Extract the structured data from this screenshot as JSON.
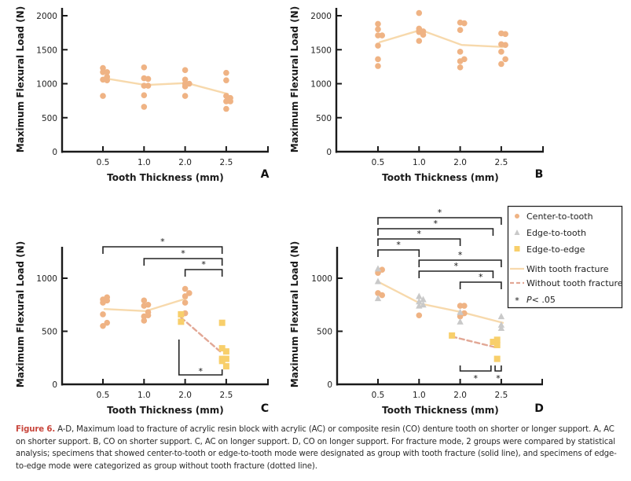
{
  "figure": {
    "caption_lead": "Figure 6.",
    "caption_text": " A-D, Maximum load to fracture of acrylic resin block with acrylic (AC) or composite resin (CO) denture tooth on shorter or longer support. A, AC on shorter support. B, CO on shorter support. C, AC on longer support. D, CO on longer support. For fracture mode, 2 groups were compared by statistical analysis; specimens that showed center-to-tooth or edge-to-tooth mode were designated as group with tooth fracture (solid line), and specimens of edge-to-edge mode were categorized as group without tooth fracture (dotted line).",
    "colors": {
      "center_to_tooth": "#efb384",
      "edge_to_tooth": "#c9c9c9",
      "edge_to_edge": "#f8cf6b",
      "with_fracture_line": "#f7d9ac",
      "without_fracture_line": "#e2a795",
      "axis": "#1a1a1a",
      "caption_lead": "#c8463c"
    },
    "legend": {
      "items": [
        {
          "label": "Center-to-tooth",
          "marker": "circle"
        },
        {
          "label": "Edge-to-tooth",
          "marker": "triangle"
        },
        {
          "label": "Edge-to-edge",
          "marker": "square"
        },
        {
          "label": "With tooth fracture",
          "marker": "solid-line"
        },
        {
          "label": "Without tooth fracture",
          "marker": "dashed-line"
        },
        {
          "label": "P< .05",
          "marker": "star"
        }
      ],
      "star_symbol": "*",
      "p_italic": "P",
      "p_rest": "< .05"
    }
  },
  "chart_data": [
    {
      "panel": "A",
      "type": "scatter",
      "title": "",
      "xlabel": "Tooth Thickness (mm)",
      "ylabel": "Maximum Flexural Load (N)",
      "categories": [
        "0.5",
        "1.0",
        "2.0",
        "2.5"
      ],
      "ylim": [
        0,
        2000
      ],
      "yticks": [
        0,
        500,
        1000,
        1500,
        2000
      ],
      "grid": false,
      "series": [
        {
          "name": "Center-to-tooth",
          "marker": "circle",
          "points": [
            [
              0,
              1230
            ],
            [
              0,
              1170
            ],
            [
              0,
              1060
            ],
            [
              0,
              820
            ],
            [
              0.1,
              1170
            ],
            [
              0.1,
              1100
            ],
            [
              0.1,
              1050
            ],
            [
              1,
              1240
            ],
            [
              1,
              1080
            ],
            [
              1,
              970
            ],
            [
              1,
              830
            ],
            [
              1,
              660
            ],
            [
              1.1,
              1070
            ],
            [
              1.1,
              970
            ],
            [
              2,
              1200
            ],
            [
              2,
              1060
            ],
            [
              2,
              1000
            ],
            [
              2,
              960
            ],
            [
              2,
              820
            ],
            [
              2.1,
              1000
            ],
            [
              3,
              1160
            ],
            [
              3,
              1050
            ],
            [
              3,
              820
            ],
            [
              3,
              740
            ],
            [
              3,
              630
            ],
            [
              3.1,
              790
            ],
            [
              3.1,
              740
            ]
          ]
        },
        {
          "name": "With tooth fracture",
          "style": "solid-line",
          "values": [
            1080,
            980,
            1010,
            850
          ]
        }
      ],
      "annotations": []
    },
    {
      "panel": "B",
      "type": "scatter",
      "title": "",
      "xlabel": "Tooth Thickness (mm)",
      "ylabel": "Maximum Flexural Load (N)",
      "categories": [
        "0.5",
        "1.0",
        "2.0",
        "2.5"
      ],
      "ylim": [
        0,
        2000
      ],
      "yticks": [
        0,
        500,
        1000,
        1500,
        2000
      ],
      "grid": false,
      "series": [
        {
          "name": "Center-to-tooth",
          "marker": "circle",
          "points": [
            [
              0,
              1880
            ],
            [
              0,
              1800
            ],
            [
              0,
              1710
            ],
            [
              0,
              1560
            ],
            [
              0,
              1360
            ],
            [
              0,
              1260
            ],
            [
              0.1,
              1710
            ],
            [
              1,
              2040
            ],
            [
              1,
              1810
            ],
            [
              1,
              1780
            ],
            [
              1,
              1760
            ],
            [
              1,
              1630
            ],
            [
              1.1,
              1770
            ],
            [
              1.1,
              1720
            ],
            [
              2,
              1900
            ],
            [
              2,
              1790
            ],
            [
              2,
              1470
            ],
            [
              2,
              1330
            ],
            [
              2,
              1240
            ],
            [
              2.1,
              1890
            ],
            [
              2.1,
              1360
            ],
            [
              3,
              1740
            ],
            [
              3,
              1580
            ],
            [
              3,
              1470
            ],
            [
              3,
              1290
            ],
            [
              3.1,
              1730
            ],
            [
              3.1,
              1570
            ],
            [
              3.1,
              1360
            ]
          ]
        },
        {
          "name": "With tooth fracture",
          "style": "solid-line",
          "values": [
            1610,
            1790,
            1570,
            1540
          ]
        }
      ],
      "annotations": []
    },
    {
      "panel": "C",
      "type": "scatter",
      "title": "",
      "xlabel": "Tooth Thickness (mm)",
      "ylabel": "Maximum Flexural Load (N)",
      "categories": [
        "0.5",
        "1.0",
        "2.0",
        "2.5"
      ],
      "ylim": [
        0,
        1300
      ],
      "yticks": [
        0,
        500,
        1000
      ],
      "grid": false,
      "series": [
        {
          "name": "Center-to-tooth",
          "marker": "circle",
          "points": [
            [
              0,
              800
            ],
            [
              0,
              770
            ],
            [
              0,
              660
            ],
            [
              0,
              550
            ],
            [
              0.1,
              820
            ],
            [
              0.1,
              790
            ],
            [
              0.1,
              580
            ],
            [
              1,
              790
            ],
            [
              1,
              740
            ],
            [
              1,
              640
            ],
            [
              1,
              600
            ],
            [
              1.1,
              750
            ],
            [
              1.1,
              680
            ],
            [
              1.1,
              650
            ],
            [
              2,
              900
            ],
            [
              2,
              830
            ],
            [
              2,
              770
            ],
            [
              2,
              670
            ],
            [
              2.1,
              860
            ]
          ]
        },
        {
          "name": "Edge-to-edge",
          "marker": "square",
          "points": [
            [
              1.9,
              660
            ],
            [
              1.9,
              590
            ],
            [
              2.9,
              580
            ],
            [
              2.9,
              340
            ],
            [
              2.9,
              240
            ],
            [
              2.9,
              220
            ],
            [
              3.0,
              310
            ],
            [
              3.0,
              240
            ],
            [
              3.0,
              170
            ]
          ]
        },
        {
          "name": "With tooth fracture",
          "style": "solid-line",
          "x": [
            0,
            1,
            2
          ],
          "values": [
            710,
            690,
            810
          ]
        },
        {
          "name": "Without tooth fracture",
          "style": "dashed-line",
          "x": [
            1.9,
            2.85
          ],
          "values": [
            630,
            310
          ]
        }
      ],
      "annotations": [
        {
          "type": "bracket",
          "from": 0,
          "to": 2.9,
          "label": "*",
          "level": 1
        },
        {
          "type": "bracket",
          "from": 1,
          "to": 2.9,
          "label": "*",
          "level": 2
        },
        {
          "type": "bracket",
          "from": 2,
          "to": 2.9,
          "label": "*",
          "level": 3
        },
        {
          "type": "bracket-low",
          "from": 1.85,
          "to": 2.9,
          "label": "*"
        }
      ]
    },
    {
      "panel": "D",
      "type": "scatter",
      "title": "",
      "xlabel": "Tooth Thickness (mm)",
      "ylabel": "Maximum Flexural Load (N)",
      "categories": [
        "0.5",
        "1.0",
        "2.0",
        "2.5"
      ],
      "ylim": [
        0,
        1300
      ],
      "yticks": [
        0,
        500,
        1000
      ],
      "grid": false,
      "legend_position": "top-right",
      "series": [
        {
          "name": "Center-to-tooth",
          "marker": "circle",
          "points": [
            [
              0,
              1050
            ],
            [
              0,
              860
            ],
            [
              0.1,
              1080
            ],
            [
              0.1,
              840
            ],
            [
              1,
              650
            ],
            [
              2,
              740
            ],
            [
              2,
              640
            ],
            [
              2.1,
              740
            ],
            [
              2.1,
              670
            ]
          ]
        },
        {
          "name": "Edge-to-tooth",
          "marker": "triangle",
          "points": [
            [
              0,
              1090
            ],
            [
              0,
              970
            ],
            [
              0,
              810
            ],
            [
              1,
              830
            ],
            [
              1,
              780
            ],
            [
              1,
              740
            ],
            [
              1.1,
              800
            ],
            [
              1.1,
              750
            ],
            [
              2,
              680
            ],
            [
              2,
              590
            ],
            [
              3,
              640
            ],
            [
              3,
              560
            ],
            [
              3,
              530
            ]
          ]
        },
        {
          "name": "Edge-to-edge",
          "marker": "square",
          "points": [
            [
              1.8,
              460
            ],
            [
              2.8,
              400
            ],
            [
              2.9,
              420
            ],
            [
              2.9,
              370
            ],
            [
              2.9,
              240
            ]
          ]
        },
        {
          "name": "With tooth fracture",
          "style": "solid-line",
          "x": [
            0,
            1,
            2,
            3
          ],
          "values": [
            960,
            760,
            680,
            580
          ]
        },
        {
          "name": "Without tooth fracture",
          "style": "dashed-line",
          "x": [
            1.8,
            2.85
          ],
          "values": [
            450,
            350
          ]
        }
      ],
      "annotations": [
        {
          "type": "bracket",
          "from": 0,
          "to": 3,
          "label": "*",
          "level": 1
        },
        {
          "type": "bracket",
          "from": 0,
          "to": 2.8,
          "label": "*",
          "level": 2
        },
        {
          "type": "bracket",
          "from": 0,
          "to": 2,
          "label": "*",
          "level": 3
        },
        {
          "type": "bracket",
          "from": 0,
          "to": 1,
          "label": "*",
          "level": 4
        },
        {
          "type": "bracket",
          "from": 1,
          "to": 3,
          "label": "*",
          "level": 5
        },
        {
          "type": "bracket",
          "from": 1,
          "to": 2.8,
          "label": "*",
          "level": 6
        },
        {
          "type": "bracket",
          "from": 2,
          "to": 3,
          "label": "*",
          "level": 7
        },
        {
          "type": "bracket-low",
          "from": 2,
          "to": 2.75,
          "label": "*"
        },
        {
          "type": "bracket-low",
          "from": 2.85,
          "to": 3.0,
          "label": "*"
        }
      ]
    }
  ]
}
